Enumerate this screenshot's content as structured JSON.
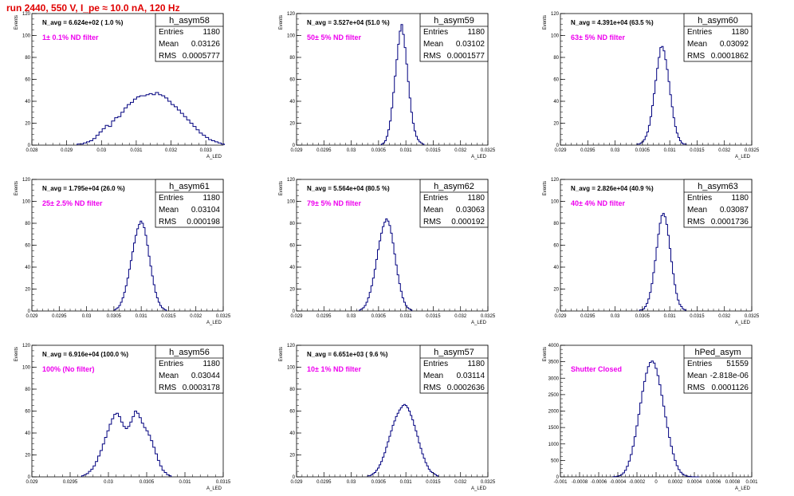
{
  "page_title": "run 2440,   550 V, I_pe ≈ 10.0 nA, 120 Hz",
  "colors": {
    "title": "#e00000",
    "note": "#ee00ee",
    "hist": "#00007f",
    "axis": "#000000"
  },
  "stat_labels": {
    "entries": "Entries",
    "mean": "Mean",
    "rms": "RMS"
  },
  "chart_data": [
    {
      "type": "bar",
      "name": "h_asym58",
      "navg": "N_avg = 6.624e+02 ( 1.0 %)",
      "note": "1± 0.1% ND filter",
      "stats": {
        "entries": "1180",
        "mean": "0.03126",
        "rms": "0.0005777"
      },
      "xlim": [
        0.028,
        0.0335
      ],
      "ylim": [
        0,
        120
      ],
      "xticks": [
        "0.028",
        "0.029",
        "0.03",
        "0.031",
        "0.032",
        "0.033"
      ],
      "xtick_values": [
        0.028,
        0.029,
        0.03,
        0.031,
        0.032,
        0.033
      ],
      "yticks": [
        "0",
        "20",
        "40",
        "60",
        "80",
        "100",
        "120"
      ],
      "ylabel": "Events",
      "xlabel": "A_LED",
      "bin_start": 0.0293,
      "bin_width": 9e-05,
      "values": [
        1,
        1,
        2,
        3,
        4,
        6,
        9,
        12,
        15,
        18,
        17,
        22,
        25,
        26,
        30,
        34,
        37,
        39,
        42,
        44,
        45,
        45,
        46,
        47,
        46,
        48,
        46,
        45,
        43,
        40,
        37,
        35,
        32,
        29,
        26,
        23,
        20,
        17,
        14,
        11,
        9,
        7,
        5,
        4,
        3,
        2,
        1
      ]
    },
    {
      "type": "bar",
      "name": "h_asym59",
      "navg": "N_avg = 3.527e+04 (51.0 %)",
      "note": "50± 5% ND filter",
      "stats": {
        "entries": "1180",
        "mean": "0.03102",
        "rms": "0.0001577"
      },
      "xlim": [
        0.029,
        0.0325
      ],
      "ylim": [
        0,
        120
      ],
      "xticks": [
        "0.029",
        "0.0295",
        "0.03",
        "0.0305",
        "0.031",
        "0.0315",
        "0.032",
        "0.0325"
      ],
      "xtick_values": [
        0.029,
        0.0295,
        0.03,
        0.0305,
        0.031,
        0.0315,
        0.032,
        0.0325
      ],
      "yticks": [
        "0",
        "20",
        "40",
        "60",
        "80",
        "100",
        "120"
      ],
      "ylabel": "Events",
      "xlabel": "A_LED",
      "bin_start": 0.03055,
      "bin_width": 3e-05,
      "values": [
        1,
        2,
        4,
        8,
        14,
        22,
        34,
        48,
        63,
        78,
        92,
        104,
        110,
        101,
        89,
        74,
        58,
        43,
        30,
        20,
        13,
        8,
        5,
        3,
        2,
        1
      ]
    },
    {
      "type": "bar",
      "name": "h_asym60",
      "navg": "N_avg = 4.391e+04 (63.5 %)",
      "note": "63± 5% ND filter",
      "stats": {
        "entries": "1180",
        "mean": "0.03092",
        "rms": "0.0001862"
      },
      "xlim": [
        0.029,
        0.0325
      ],
      "ylim": [
        0,
        120
      ],
      "xticks": [
        "0.029",
        "0.0295",
        "0.03",
        "0.0305",
        "0.031",
        "0.0315",
        "0.032",
        "0.0325"
      ],
      "xtick_values": [
        0.029,
        0.0295,
        0.03,
        0.0305,
        0.031,
        0.0315,
        0.032,
        0.0325
      ],
      "yticks": [
        "0",
        "20",
        "40",
        "60",
        "80",
        "100",
        "120"
      ],
      "ylabel": "Events",
      "xlabel": "A_LED",
      "bin_start": 0.0304,
      "bin_width": 3e-05,
      "values": [
        1,
        1,
        2,
        3,
        5,
        8,
        12,
        18,
        26,
        36,
        47,
        59,
        70,
        80,
        89,
        90,
        86,
        78,
        69,
        58,
        46,
        35,
        25,
        17,
        11,
        7,
        4,
        2,
        1,
        1
      ]
    },
    {
      "type": "bar",
      "name": "h_asym61",
      "navg": "N_avg = 1.795e+04 (26.0 %)",
      "note": "25± 2.5% ND filter",
      "stats": {
        "entries": "1180",
        "mean": "0.03104",
        "rms": "0.000198"
      },
      "xlim": [
        0.029,
        0.0325
      ],
      "ylim": [
        0,
        120
      ],
      "xticks": [
        "0.029",
        "0.0295",
        "0.03",
        "0.0305",
        "0.031",
        "0.0315",
        "0.032",
        "0.0325"
      ],
      "xtick_values": [
        0.029,
        0.0295,
        0.03,
        0.0305,
        0.031,
        0.0315,
        0.032,
        0.0325
      ],
      "yticks": [
        "0",
        "20",
        "40",
        "60",
        "80",
        "100",
        "120"
      ],
      "ylabel": "Events",
      "xlabel": "A_LED",
      "bin_start": 0.0305,
      "bin_width": 3e-05,
      "values": [
        1,
        2,
        3,
        5,
        8,
        12,
        17,
        23,
        30,
        38,
        46,
        54,
        62,
        69,
        75,
        79,
        82,
        80,
        76,
        69,
        60,
        50,
        41,
        32,
        24,
        17,
        12,
        8,
        5,
        3,
        2,
        1
      ]
    },
    {
      "type": "bar",
      "name": "h_asym62",
      "navg": "N_avg = 5.564e+04 (80.5 %)",
      "note": "79± 5% ND filter",
      "stats": {
        "entries": "1180",
        "mean": "0.03063",
        "rms": "0.000192"
      },
      "xlim": [
        0.029,
        0.0325
      ],
      "ylim": [
        0,
        120
      ],
      "xticks": [
        "0.029",
        "0.0295",
        "0.03",
        "0.0305",
        "0.031",
        "0.0315",
        "0.032",
        "0.0325"
      ],
      "xtick_values": [
        0.029,
        0.0295,
        0.03,
        0.0305,
        0.031,
        0.0315,
        0.032,
        0.0325
      ],
      "yticks": [
        "0",
        "20",
        "40",
        "60",
        "80",
        "100",
        "120"
      ],
      "ylabel": "Events",
      "xlabel": "A_LED",
      "bin_start": 0.03015,
      "bin_width": 3e-05,
      "values": [
        1,
        2,
        3,
        5,
        8,
        12,
        17,
        23,
        30,
        38,
        47,
        56,
        64,
        71,
        77,
        81,
        84,
        82,
        78,
        71,
        62,
        52,
        42,
        33,
        25,
        18,
        12,
        8,
        5,
        3,
        2,
        1
      ]
    },
    {
      "type": "bar",
      "name": "h_asym63",
      "navg": "N_avg = 2.826e+04 (40.9 %)",
      "note": "40± 4% ND filter",
      "stats": {
        "entries": "1180",
        "mean": "0.03087",
        "rms": "0.0001736"
      },
      "xlim": [
        0.029,
        0.0325
      ],
      "ylim": [
        0,
        120
      ],
      "xticks": [
        "0.029",
        "0.0295",
        "0.03",
        "0.0305",
        "0.031",
        "0.0315",
        "0.032",
        "0.0325"
      ],
      "xtick_values": [
        0.029,
        0.0295,
        0.03,
        0.0305,
        0.031,
        0.0315,
        0.032,
        0.0325
      ],
      "yticks": [
        "0",
        "20",
        "40",
        "60",
        "80",
        "100",
        "120"
      ],
      "ylabel": "Events",
      "xlabel": "A_LED",
      "bin_start": 0.03045,
      "bin_width": 3e-05,
      "values": [
        1,
        1,
        2,
        4,
        7,
        11,
        17,
        25,
        35,
        46,
        58,
        70,
        80,
        87,
        89,
        86,
        79,
        69,
        57,
        45,
        34,
        24,
        16,
        10,
        6,
        4,
        2,
        1
      ]
    },
    {
      "type": "bar",
      "name": "h_asym56",
      "navg": "N_avg = 6.916e+04 (100.0 %)",
      "note": "100% (No filter)",
      "stats": {
        "entries": "1180",
        "mean": "0.03044",
        "rms": "0.0003178"
      },
      "xlim": [
        0.029,
        0.0315
      ],
      "ylim": [
        0,
        120
      ],
      "xticks": [
        "0.029",
        "0.0295",
        "0.03",
        "0.0305",
        "0.031",
        "0.0315"
      ],
      "xtick_values": [
        0.029,
        0.0295,
        0.03,
        0.0305,
        0.031,
        0.0315
      ],
      "yticks": [
        "0",
        "20",
        "40",
        "60",
        "80",
        "100",
        "120"
      ],
      "ylabel": "Events",
      "xlabel": "A_LED",
      "bin_start": 0.02965,
      "bin_width": 3e-05,
      "values": [
        1,
        2,
        3,
        5,
        7,
        10,
        14,
        19,
        24,
        30,
        36,
        42,
        48,
        53,
        57,
        58,
        55,
        50,
        46,
        44,
        46,
        50,
        55,
        60,
        58,
        54,
        49,
        45,
        42,
        38,
        33,
        27,
        21,
        15,
        10,
        6,
        4,
        2,
        1
      ]
    },
    {
      "type": "bar",
      "name": "h_asym57",
      "navg": "N_avg = 6.651e+03 ( 9.6 %)",
      "note": "10± 1% ND filter",
      "stats": {
        "entries": "1180",
        "mean": "0.03114",
        "rms": "0.0002636"
      },
      "xlim": [
        0.029,
        0.0325
      ],
      "ylim": [
        0,
        120
      ],
      "xticks": [
        "0.029",
        "0.0295",
        "0.03",
        "0.0305",
        "0.031",
        "0.0315",
        "0.032",
        "0.0325"
      ],
      "xtick_values": [
        0.029,
        0.0295,
        0.03,
        0.0305,
        0.031,
        0.0315,
        0.032,
        0.0325
      ],
      "yticks": [
        "0",
        "20",
        "40",
        "60",
        "80",
        "100",
        "120"
      ],
      "ylabel": "Events",
      "xlabel": "A_LED",
      "bin_start": 0.0303,
      "bin_width": 3e-05,
      "values": [
        1,
        1,
        2,
        3,
        4,
        6,
        8,
        11,
        14,
        18,
        22,
        27,
        32,
        37,
        42,
        47,
        51,
        55,
        58,
        61,
        63,
        65,
        66,
        65,
        63,
        60,
        56,
        52,
        47,
        42,
        37,
        31,
        26,
        21,
        17,
        13,
        10,
        7,
        5,
        4,
        3,
        2,
        1
      ]
    },
    {
      "type": "bar",
      "name": "hPed_asym",
      "navg": "",
      "note": "Shutter Closed",
      "stats": {
        "entries": "51559",
        "mean": "-2.818e-06",
        "rms": "0.0001126"
      },
      "xlim": [
        -0.001,
        0.001
      ],
      "ylim": [
        0,
        4000
      ],
      "xticks": [
        "-0.001",
        "-0.0008",
        "-0.0006",
        "-0.0004",
        "-0.0002",
        "0",
        "0.0002",
        "0.0004",
        "0.0006",
        "0.0008",
        "0.001"
      ],
      "xtick_values": [
        -0.001,
        -0.0008,
        -0.0006,
        -0.0004,
        -0.0002,
        0,
        0.0002,
        0.0004,
        0.0006,
        0.0008,
        0.001
      ],
      "yticks": [
        "0",
        "500",
        "1000",
        "1500",
        "2000",
        "2500",
        "3000",
        "3500",
        "4000"
      ],
      "ylabel": "Events",
      "xlabel": "A_LED",
      "bin_start": -0.00045,
      "bin_width": 2e-05,
      "values": [
        5,
        10,
        20,
        40,
        70,
        120,
        200,
        320,
        480,
        680,
        930,
        1220,
        1550,
        1900,
        2250,
        2600,
        2900,
        3150,
        3350,
        3480,
        3520,
        3460,
        3300,
        3080,
        2800,
        2480,
        2150,
        1820,
        1500,
        1200,
        930,
        700,
        500,
        340,
        220,
        140,
        85,
        50,
        28,
        15,
        8,
        4,
        2,
        1,
        1
      ]
    }
  ]
}
